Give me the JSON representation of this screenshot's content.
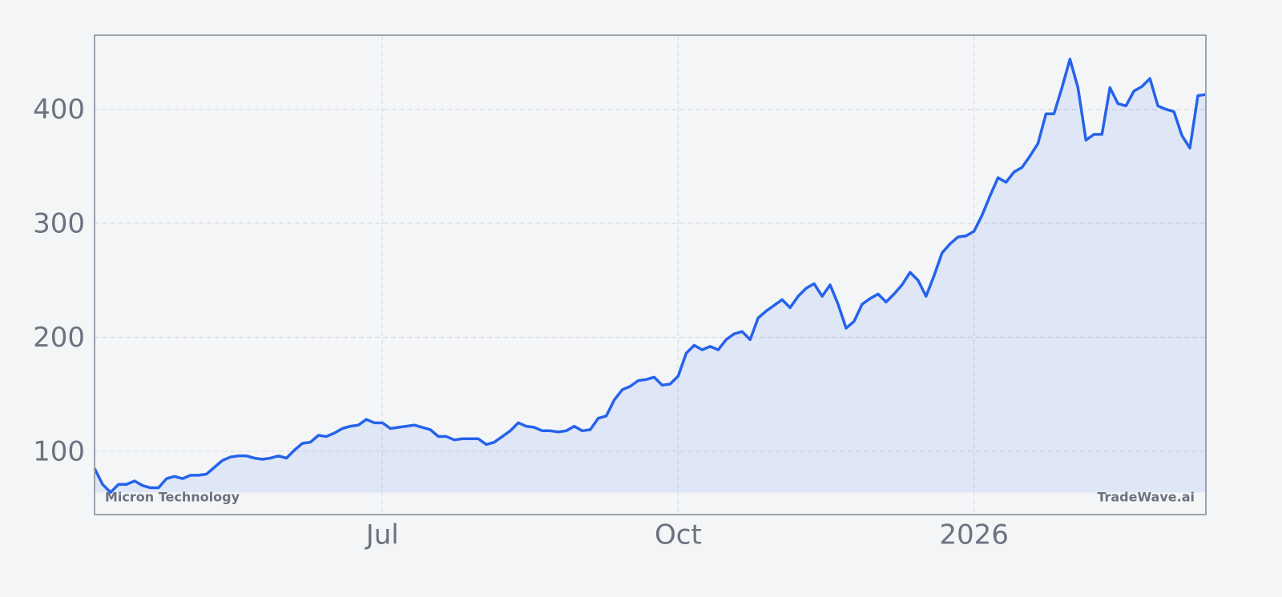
{
  "chart_data": {
    "type": "line",
    "categories": [
      null,
      null,
      null,
      null,
      null,
      null,
      null,
      null,
      null,
      null,
      null,
      null,
      null,
      null,
      null,
      null,
      null,
      null,
      null,
      null,
      null,
      null,
      null,
      null,
      null,
      null,
      null,
      null,
      null,
      null,
      null,
      null,
      null,
      null,
      null,
      null,
      "Jul",
      null,
      null,
      null,
      null,
      null,
      null,
      null,
      null,
      null,
      null,
      null,
      null,
      null,
      null,
      null,
      null,
      null,
      null,
      null,
      null,
      null,
      null,
      null,
      null,
      null,
      null,
      null,
      null,
      null,
      null,
      null,
      null,
      null,
      null,
      null,
      null,
      "Oct",
      null,
      null,
      null,
      null,
      null,
      null,
      null,
      null,
      null,
      null,
      null,
      null,
      null,
      null,
      null,
      null,
      null,
      null,
      null,
      null,
      null,
      null,
      null,
      null,
      null,
      null,
      null,
      null,
      null,
      null,
      null,
      null,
      null,
      null,
      null,
      null,
      "2026",
      null,
      null,
      null,
      null,
      null,
      null,
      null,
      null,
      null,
      null,
      null,
      null,
      null,
      null,
      null,
      null,
      null,
      null,
      null,
      null,
      null,
      null,
      null,
      null,
      null,
      null,
      null,
      null,
      null
    ],
    "series": [
      {
        "name": "Micron Technology",
        "color": "#2563eb",
        "values": [
          85,
          71,
          64,
          71,
          71,
          74,
          70,
          68,
          68,
          76,
          78,
          76,
          79,
          79,
          80,
          86,
          92,
          95,
          96,
          96,
          94,
          93,
          94,
          96,
          94,
          101,
          107,
          108,
          114,
          113,
          116,
          120,
          122,
          123,
          128,
          125,
          125,
          120,
          121,
          122,
          123,
          121,
          119,
          113,
          113,
          110,
          111,
          111,
          111,
          106,
          108,
          113,
          118,
          125,
          122,
          121,
          118,
          118,
          117,
          118,
          122,
          118,
          119,
          129,
          131,
          145,
          154,
          157,
          162,
          163,
          165,
          158,
          159,
          166,
          186,
          193,
          189,
          192,
          189,
          198,
          203,
          205,
          198,
          217,
          223,
          228,
          233,
          226,
          236,
          243,
          247,
          236,
          246,
          229,
          208,
          214,
          229,
          234,
          238,
          231,
          238,
          246,
          257,
          250,
          236,
          254,
          274,
          282,
          288,
          289,
          293,
          307,
          324,
          340,
          336,
          345,
          349,
          359,
          370,
          396,
          396,
          419,
          444,
          419,
          373,
          378,
          378,
          419,
          405,
          403,
          416,
          420,
          427,
          403,
          400,
          398,
          377,
          366,
          412,
          413
        ]
      }
    ],
    "watermark": "TradeWave.ai",
    "ylim": [
      44.5,
      465
    ],
    "yticks": [
      100,
      200,
      300,
      400
    ],
    "grid": true
  }
}
